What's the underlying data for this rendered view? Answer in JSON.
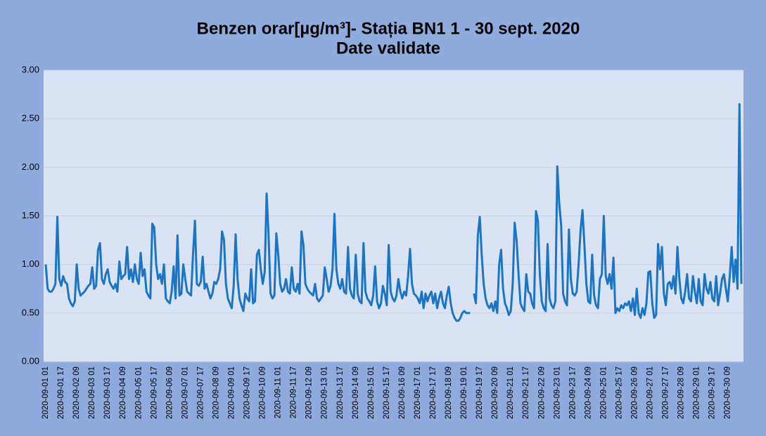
{
  "chart_data": {
    "type": "line",
    "title": "Benzen orar[µg/m³]- Stația BN1 1 - 30 sept. 2020",
    "subtitle": "Date validate",
    "ylim": [
      0,
      3
    ],
    "yticks": [
      {
        "value": 0,
        "label": "0.00"
      },
      {
        "value": 0.5,
        "label": "0.50"
      },
      {
        "value": 1,
        "label": "1.00"
      },
      {
        "value": 1.5,
        "label": "1.50"
      },
      {
        "value": 2,
        "label": "2.00"
      },
      {
        "value": 2.5,
        "label": "2.50"
      },
      {
        "value": 3,
        "label": "3.00"
      }
    ],
    "grid": true,
    "categories": [
      "2020-09-01 01",
      null,
      null,
      null,
      null,
      null,
      null,
      null,
      "2020-09-01 17",
      null,
      null,
      null,
      null,
      null,
      null,
      null,
      "2020-09-02 09",
      null,
      null,
      null,
      null,
      null,
      null,
      null,
      "2020-09-03 01",
      null,
      null,
      null,
      null,
      null,
      null,
      null,
      "2020-09-03 17",
      null,
      null,
      null,
      null,
      null,
      null,
      null,
      "2020-09-04 09",
      null,
      null,
      null,
      null,
      null,
      null,
      null,
      "2020-09-05 01",
      null,
      null,
      null,
      null,
      null,
      null,
      null,
      "2020-09-05 17",
      null,
      null,
      null,
      null,
      null,
      null,
      null,
      "2020-09-06 09",
      null,
      null,
      null,
      null,
      null,
      null,
      null,
      "2020-09-07 01",
      null,
      null,
      null,
      null,
      null,
      null,
      null,
      "2020-09-07 17",
      null,
      null,
      null,
      null,
      null,
      null,
      null,
      "2020-09-08 09",
      null,
      null,
      null,
      null,
      null,
      null,
      null,
      "2020-09-09 01",
      null,
      null,
      null,
      null,
      null,
      null,
      null,
      "2020-09-09 17",
      null,
      null,
      null,
      null,
      null,
      null,
      null,
      "2020-09-10 09",
      null,
      null,
      null,
      null,
      null,
      null,
      null,
      "2020-09-11 01",
      null,
      null,
      null,
      null,
      null,
      null,
      null,
      "2020-09-11 17",
      null,
      null,
      null,
      null,
      null,
      null,
      null,
      "2020-09-12 09",
      null,
      null,
      null,
      null,
      null,
      null,
      null,
      "2020-09-13 01",
      null,
      null,
      null,
      null,
      null,
      null,
      null,
      "2020-09-13 17",
      null,
      null,
      null,
      null,
      null,
      null,
      null,
      "2020-09-14 09",
      null,
      null,
      null,
      null,
      null,
      null,
      null,
      "2020-09-15 01",
      null,
      null,
      null,
      null,
      null,
      null,
      null,
      "2020-09-15 17",
      null,
      null,
      null,
      null,
      null,
      null,
      null,
      "2020-09-16 09",
      null,
      null,
      null,
      null,
      null,
      null,
      null,
      "2020-09-17 01",
      null,
      null,
      null,
      null,
      null,
      null,
      null,
      "2020-09-17 17",
      null,
      null,
      null,
      null,
      null,
      null,
      null,
      "2020-09-18 09",
      null,
      null,
      null,
      null,
      null,
      null,
      null,
      "2020-09-19 01",
      null,
      null,
      null,
      null,
      null,
      null,
      null,
      "2020-09-19 17",
      null,
      null,
      null,
      null,
      null,
      null,
      null,
      "2020-09-20 09",
      null,
      null,
      null,
      null,
      null,
      null,
      null,
      "2020-09-21 01",
      null,
      null,
      null,
      null,
      null,
      null,
      null,
      "2020-09-21 17",
      null,
      null,
      null,
      null,
      null,
      null,
      null,
      "2020-09-22 09",
      null,
      null,
      null,
      null,
      null,
      null,
      null,
      "2020-09-23 01",
      null,
      null,
      null,
      null,
      null,
      null,
      null,
      "2020-09-23 17",
      null,
      null,
      null,
      null,
      null,
      null,
      null,
      "2020-09-24 09",
      null,
      null,
      null,
      null,
      null,
      null,
      null,
      "2020-09-25 01",
      null,
      null,
      null,
      null,
      null,
      null,
      null,
      "2020-09-25 17",
      null,
      null,
      null,
      null,
      null,
      null,
      null,
      "2020-09-26 09",
      null,
      null,
      null,
      null,
      null,
      null,
      null,
      "2020-09-27 01",
      null,
      null,
      null,
      null,
      null,
      null,
      null,
      "2020-09-27 17",
      null,
      null,
      null,
      null,
      null,
      null,
      null,
      "2020-09-28 09",
      null,
      null,
      null,
      null,
      null,
      null,
      null,
      "2020-09-29 01",
      null,
      null,
      null,
      null,
      null,
      null,
      null,
      "2020-09-29 17",
      null,
      null,
      null,
      null,
      null,
      null,
      null,
      "2020-09-30 09",
      null,
      null,
      null,
      null,
      null,
      null,
      null
    ],
    "series": [
      {
        "name": "Benzen",
        "color": "#1b75c4",
        "values": [
          1.0,
          0.75,
          0.72,
          0.72,
          0.75,
          0.8,
          1.49,
          0.85,
          0.78,
          0.88,
          0.82,
          0.8,
          0.65,
          0.6,
          0.57,
          0.62,
          1.0,
          0.75,
          0.68,
          0.7,
          0.72,
          0.75,
          0.78,
          0.8,
          0.97,
          0.75,
          0.78,
          1.15,
          1.22,
          0.85,
          0.8,
          0.9,
          0.95,
          0.82,
          0.78,
          0.75,
          0.8,
          0.72,
          1.03,
          0.85,
          0.88,
          0.9,
          1.18,
          0.85,
          0.95,
          0.82,
          1.0,
          0.85,
          0.8,
          1.12,
          0.88,
          0.95,
          0.72,
          0.68,
          0.65,
          1.42,
          1.38,
          1.0,
          0.85,
          0.9,
          0.8,
          1.0,
          0.65,
          0.62,
          0.6,
          0.72,
          0.98,
          0.65,
          1.3,
          0.68,
          0.7,
          1.0,
          0.85,
          0.72,
          0.7,
          0.68,
          1.1,
          1.45,
          0.8,
          0.78,
          0.82,
          1.08,
          0.75,
          0.8,
          0.72,
          0.65,
          0.7,
          0.82,
          0.8,
          0.85,
          0.95,
          1.34,
          1.25,
          0.8,
          0.65,
          0.6,
          0.55,
          0.78,
          1.31,
          0.85,
          0.65,
          0.58,
          0.52,
          0.7,
          0.65,
          0.62,
          0.95,
          0.6,
          0.62,
          1.1,
          1.15,
          0.95,
          0.8,
          0.92,
          1.73,
          1.3,
          0.7,
          0.65,
          0.68,
          1.32,
          1.1,
          0.8,
          0.72,
          0.75,
          0.85,
          0.72,
          0.7,
          0.97,
          0.75,
          0.72,
          0.8,
          0.7,
          1.34,
          1.2,
          0.8,
          0.75,
          0.72,
          0.7,
          0.68,
          0.8,
          0.65,
          0.62,
          0.65,
          0.68,
          0.97,
          0.85,
          0.72,
          0.78,
          0.95,
          1.52,
          0.95,
          0.8,
          0.75,
          0.85,
          0.72,
          0.7,
          1.18,
          0.75,
          0.68,
          0.65,
          1.1,
          0.7,
          0.62,
          0.6,
          1.22,
          0.72,
          0.65,
          0.62,
          0.58,
          0.68,
          0.98,
          0.62,
          0.55,
          0.6,
          0.78,
          0.7,
          0.58,
          1.2,
          0.72,
          0.65,
          0.62,
          0.68,
          0.85,
          0.72,
          0.65,
          0.72,
          0.68,
          0.88,
          1.16,
          0.8,
          0.7,
          0.68,
          0.65,
          0.6,
          0.72,
          0.55,
          0.7,
          0.62,
          0.68,
          0.72,
          0.6,
          0.7,
          0.55,
          0.65,
          0.72,
          0.6,
          0.55,
          0.68,
          0.77,
          0.6,
          0.5,
          0.45,
          0.42,
          0.42,
          0.45,
          0.5,
          0.52,
          0.5,
          0.5,
          0.5,
          null,
          0.7,
          0.6,
          1.3,
          1.49,
          1.1,
          0.8,
          0.65,
          0.58,
          0.55,
          0.6,
          0.52,
          0.62,
          0.5,
          1.0,
          1.15,
          0.75,
          0.6,
          0.55,
          0.48,
          0.52,
          0.8,
          1.43,
          1.25,
          0.9,
          0.6,
          0.55,
          0.52,
          0.9,
          0.72,
          0.7,
          0.6,
          0.55,
          1.55,
          1.45,
          0.9,
          0.62,
          0.55,
          0.52,
          1.21,
          0.65,
          0.58,
          0.55,
          0.62,
          2.01,
          1.63,
          1.4,
          0.7,
          0.62,
          0.58,
          1.36,
          0.85,
          0.7,
          0.68,
          0.72,
          1.0,
          1.35,
          1.56,
          1.2,
          0.8,
          0.62,
          0.6,
          1.1,
          0.68,
          0.58,
          0.55,
          0.85,
          0.9,
          1.5,
          0.88,
          0.8,
          0.9,
          0.75,
          1.07,
          0.5,
          0.55,
          0.52,
          0.58,
          0.55,
          0.6,
          0.58,
          0.62,
          0.52,
          0.65,
          0.48,
          0.75,
          0.5,
          0.45,
          0.55,
          0.48,
          0.6,
          0.92,
          0.93,
          0.6,
          0.45,
          0.48,
          1.21,
          0.95,
          1.18,
          0.7,
          0.58,
          0.8,
          0.82,
          0.75,
          0.88,
          0.7,
          1.18,
          0.85,
          0.65,
          0.6,
          0.72,
          0.9,
          0.65,
          0.62,
          0.88,
          0.72,
          0.6,
          0.85,
          0.62,
          0.58,
          0.9,
          0.75,
          0.7,
          0.82,
          0.65,
          0.62,
          0.88,
          0.58,
          0.7,
          0.85,
          0.9,
          0.75,
          0.62,
          0.88,
          1.18,
          0.82,
          1.05,
          0.75,
          2.65,
          0.8
        ]
      }
    ]
  }
}
